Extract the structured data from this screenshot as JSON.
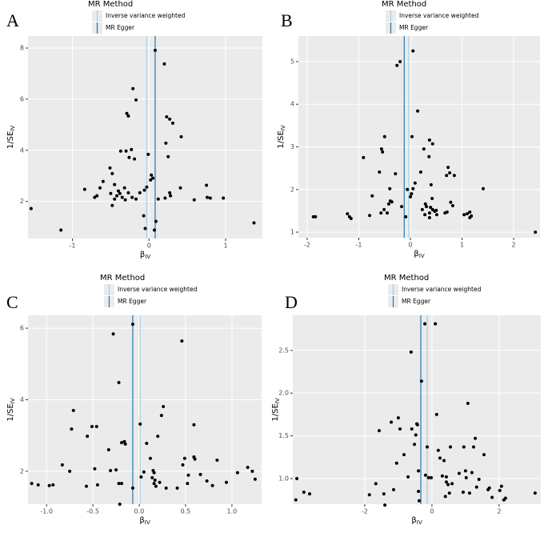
{
  "chart_data": [
    {
      "type": "scatter",
      "panel": "A",
      "legend_title": "MR Method",
      "x_label": "β",
      "x_label_subscript": "IV",
      "y_label": "1/SE",
      "y_label_subscript": "IV",
      "xlim": [
        -1.58,
        1.48
      ],
      "ylim": [
        0.55,
        8.47
      ],
      "xticks": [
        -1,
        0,
        1
      ],
      "yticks": [
        2,
        4,
        6,
        8
      ],
      "grid": true,
      "point_color": "#000000",
      "reference_lines": [
        {
          "name": "Inverse variance weighted",
          "color": "#a6cee3",
          "x": -0.03
        },
        {
          "name": "MR Egger",
          "color": "#1f78b4",
          "x": 0.08
        }
      ],
      "x": [
        -1.54,
        -1.15,
        0.08,
        0.2,
        -0.21,
        -0.17,
        0.23,
        0.27,
        0.31,
        -0.29,
        -0.27,
        0.22,
        0.42,
        -0.37,
        -0.3,
        -0.23,
        -0.26,
        -0.19,
        -0.01,
        0.25,
        0.03,
        0.05,
        0.02,
        -0.51,
        -0.48,
        -0.6,
        -0.64,
        -0.84,
        -0.45,
        -0.4,
        -0.32,
        -0.27,
        -0.35,
        -0.42,
        -0.38,
        -0.5,
        -0.45,
        -0.31,
        -0.22,
        -0.12,
        -0.06,
        -0.03,
        -0.17,
        0.12,
        0.27,
        0.28,
        0.41,
        -0.71,
        -0.68,
        -0.48,
        -0.07,
        0.09,
        -0.05,
        0.07,
        0.59,
        0.75,
        0.76,
        0.8,
        0.97,
        1.37,
        0.21
      ],
      "y": [
        1.72,
        0.88,
        7.91,
        7.38,
        6.41,
        5.97,
        5.31,
        5.22,
        5.06,
        5.44,
        5.34,
        4.28,
        4.53,
        3.97,
        3.97,
        4.03,
        3.72,
        3.66,
        3.84,
        3.75,
        3.03,
        2.91,
        2.84,
        3.31,
        3.09,
        2.78,
        2.53,
        2.47,
        2.66,
        2.41,
        2.53,
        2.34,
        2.16,
        2.22,
        2.31,
        2.31,
        2.09,
        2.06,
        2.16,
        2.34,
        2.44,
        2.56,
        2.09,
        2.09,
        2.34,
        2.22,
        2.53,
        2.16,
        2.22,
        1.84,
        1.44,
        1.22,
        0.94,
        0.88,
        2.06,
        2.63,
        2.16,
        2.13,
        2.13,
        1.16,
        2.13
      ]
    },
    {
      "type": "scatter",
      "panel": "B",
      "legend_title": "MR Method",
      "x_label": "β",
      "x_label_subscript": "IV",
      "y_label": "1/SE",
      "y_label_subscript": "IV",
      "xlim": [
        -2.17,
        2.51
      ],
      "ylim": [
        0.87,
        5.6
      ],
      "xticks": [
        -2,
        -1,
        0,
        1,
        2
      ],
      "yticks": [
        1,
        2,
        3,
        4,
        5
      ],
      "grid": true,
      "point_color": "#000000",
      "reference_lines": [
        {
          "name": "Inverse variance weighted",
          "color": "#a6cee3",
          "x": -0.03
        },
        {
          "name": "MR Egger",
          "color": "#1f78b4",
          "x": -0.12
        }
      ],
      "x": [
        -1.88,
        -1.84,
        -1.22,
        -1.18,
        -1.15,
        -0.91,
        -0.74,
        -0.79,
        -0.6,
        -0.56,
        -0.5,
        -0.54,
        -0.4,
        -0.26,
        -0.2,
        0.05,
        0.14,
        0.03,
        -0.42,
        -0.39,
        -0.36,
        -0.45,
        -0.51,
        -0.57,
        -0.29,
        -0.17,
        -0.06,
        0.05,
        0.02,
        0.0,
        -0.09,
        0.09,
        0.2,
        0.26,
        0.23,
        0.28,
        0.29,
        0.37,
        0.31,
        0.39,
        0.43,
        0.36,
        0.37,
        0.37,
        0.43,
        0.5,
        0.42,
        0.4,
        0.47,
        0.51,
        0.67,
        0.71,
        0.73,
        0.7,
        0.76,
        0.85,
        0.82,
        0.78,
        1.04,
        1.1,
        1.15,
        1.15,
        1.18,
        1.41,
        2.42
      ],
      "y": [
        1.36,
        1.36,
        1.43,
        1.36,
        1.32,
        2.75,
        1.85,
        1.39,
        2.41,
        2.95,
        3.24,
        2.88,
        2.02,
        4.91,
        5.0,
        5.25,
        3.84,
        3.24,
        1.66,
        1.73,
        1.71,
        1.45,
        1.53,
        1.45,
        2.37,
        1.6,
        2.0,
        2.02,
        1.9,
        1.83,
        1.36,
        2.15,
        2.41,
        2.95,
        1.53,
        1.41,
        1.66,
        3.16,
        1.6,
        1.58,
        3.07,
        2.77,
        1.45,
        1.34,
        1.53,
        1.51,
        1.79,
        2.11,
        1.49,
        1.41,
        1.45,
        1.47,
        2.52,
        2.33,
        2.39,
        2.33,
        1.62,
        1.7,
        1.41,
        1.43,
        1.47,
        1.34,
        1.38,
        2.02,
        1.0
      ]
    },
    {
      "type": "scatter",
      "panel": "C",
      "legend_title": "MR Method",
      "x_label": "β",
      "x_label_subscript": "IV",
      "y_label": "1/SE",
      "y_label_subscript": "IV",
      "xlim": [
        -1.2,
        1.32
      ],
      "ylim": [
        1.08,
        6.36
      ],
      "xticks": [
        {
          "value": -1,
          "label": "-1.0"
        },
        {
          "value": -0.5,
          "label": "-0.5"
        },
        {
          "value": 0,
          "label": "0.0"
        },
        {
          "value": 0.5,
          "label": "0.5"
        },
        {
          "value": 1,
          "label": "1.0"
        }
      ],
      "yticks": [
        2,
        4,
        6
      ],
      "grid": true,
      "point_color": "#000000",
      "reference_lines": [
        {
          "name": "Inverse variance weighted",
          "color": "#a6cee3",
          "x": 0.01
        },
        {
          "name": "MR Egger",
          "color": "#1f78b4",
          "x": -0.07
        }
      ],
      "x": [
        -1.16,
        -1.09,
        -0.97,
        -0.93,
        -0.83,
        -0.75,
        -0.73,
        -0.71,
        -0.57,
        -0.56,
        -0.51,
        -0.46,
        -0.48,
        -0.45,
        -0.33,
        -0.31,
        -0.28,
        -0.25,
        -0.22,
        -0.22,
        -0.19,
        -0.21,
        -0.19,
        -0.16,
        -0.15,
        -0.07,
        -0.07,
        0.01,
        0.02,
        0.05,
        0.08,
        0.12,
        0.14,
        0.15,
        0.16,
        0.16,
        0.17,
        0.18,
        0.2,
        0.22,
        0.24,
        0.26,
        0.29,
        0.41,
        0.46,
        0.47,
        0.49,
        0.52,
        0.53,
        0.59,
        0.59,
        0.6,
        0.66,
        0.73,
        0.79,
        0.84,
        0.94,
        1.06,
        1.17,
        1.22,
        1.25
      ],
      "y": [
        1.66,
        1.62,
        1.6,
        1.62,
        2.18,
        2.0,
        3.18,
        3.7,
        1.58,
        2.98,
        3.25,
        3.25,
        2.07,
        1.62,
        2.6,
        2.02,
        5.84,
        2.04,
        4.48,
        1.66,
        1.66,
        1.08,
        2.8,
        2.83,
        2.76,
        6.11,
        1.53,
        3.32,
        1.84,
        1.98,
        2.78,
        2.36,
        1.82,
        2.02,
        1.66,
        1.96,
        1.75,
        1.58,
        2.98,
        1.69,
        3.56,
        3.81,
        1.53,
        1.53,
        5.64,
        2.18,
        2.36,
        1.66,
        1.89,
        3.3,
        2.4,
        2.34,
        1.91,
        1.73,
        1.6,
        2.31,
        1.69,
        1.96,
        2.11,
        2.0,
        1.78
      ]
    },
    {
      "type": "scatter",
      "panel": "D",
      "legend_title": "MR Method",
      "x_label": "β",
      "x_label_subscript": "IV",
      "y_label": "1/SE",
      "y_label_subscript": "IV",
      "xlim": [
        -4.14,
        3.24
      ],
      "ylim": [
        0.7,
        2.91
      ],
      "xticks": [
        -2,
        0,
        2
      ],
      "yticks": [
        {
          "value": 1,
          "label": "1.0"
        },
        {
          "value": 1.5,
          "label": "1.5"
        },
        {
          "value": 2,
          "label": "2.0"
        },
        {
          "value": 2.5,
          "label": "2.5"
        }
      ],
      "grid": true,
      "point_color": "#000000",
      "reference_lines": [
        {
          "name": "Inverse variance weighted",
          "color": "#a6cee3",
          "x": -0.14
        },
        {
          "name": "MR Egger",
          "color": "#1f78b4",
          "x": -0.33
        }
      ],
      "x": [
        -4.05,
        -4.02,
        -3.81,
        -3.64,
        -1.86,
        -1.67,
        -1.57,
        -1.4,
        -1.43,
        -1.21,
        -1.14,
        -1.05,
        -1.0,
        -0.95,
        -0.83,
        -0.71,
        -0.62,
        -0.6,
        -0.52,
        -0.48,
        -0.45,
        -0.43,
        -0.4,
        -0.4,
        -0.31,
        -0.38,
        -0.21,
        -0.19,
        -0.14,
        -0.1,
        -0.02,
        0.1,
        0.14,
        0.19,
        0.24,
        0.31,
        0.36,
        0.4,
        0.43,
        0.43,
        0.48,
        0.52,
        0.55,
        0.6,
        0.81,
        0.95,
        0.93,
        1.0,
        1.02,
        1.07,
        1.12,
        1.19,
        1.24,
        1.29,
        1.33,
        1.4,
        1.55,
        1.67,
        1.71,
        1.79,
        2.02,
        2.07,
        2.14,
        2.19,
        3.07
      ],
      "y": [
        0.75,
        1.0,
        0.84,
        0.82,
        0.81,
        0.94,
        1.56,
        0.69,
        0.82,
        1.66,
        0.87,
        1.18,
        1.71,
        1.58,
        1.28,
        1.02,
        2.48,
        1.58,
        1.4,
        1.51,
        1.64,
        1.63,
        1.09,
        0.85,
        2.14,
        0.74,
        2.81,
        1.04,
        1.37,
        1.01,
        1.01,
        2.81,
        1.75,
        1.33,
        1.24,
        1.03,
        1.21,
        0.79,
        1.02,
        0.96,
        0.93,
        0.83,
        1.37,
        0.94,
        1.06,
        1.37,
        0.84,
        1.09,
        1.01,
        1.88,
        0.83,
        1.07,
        1.37,
        1.47,
        0.9,
        0.99,
        1.28,
        0.87,
        0.89,
        0.78,
        0.86,
        0.91,
        0.75,
        0.77,
        0.83
      ]
    }
  ]
}
